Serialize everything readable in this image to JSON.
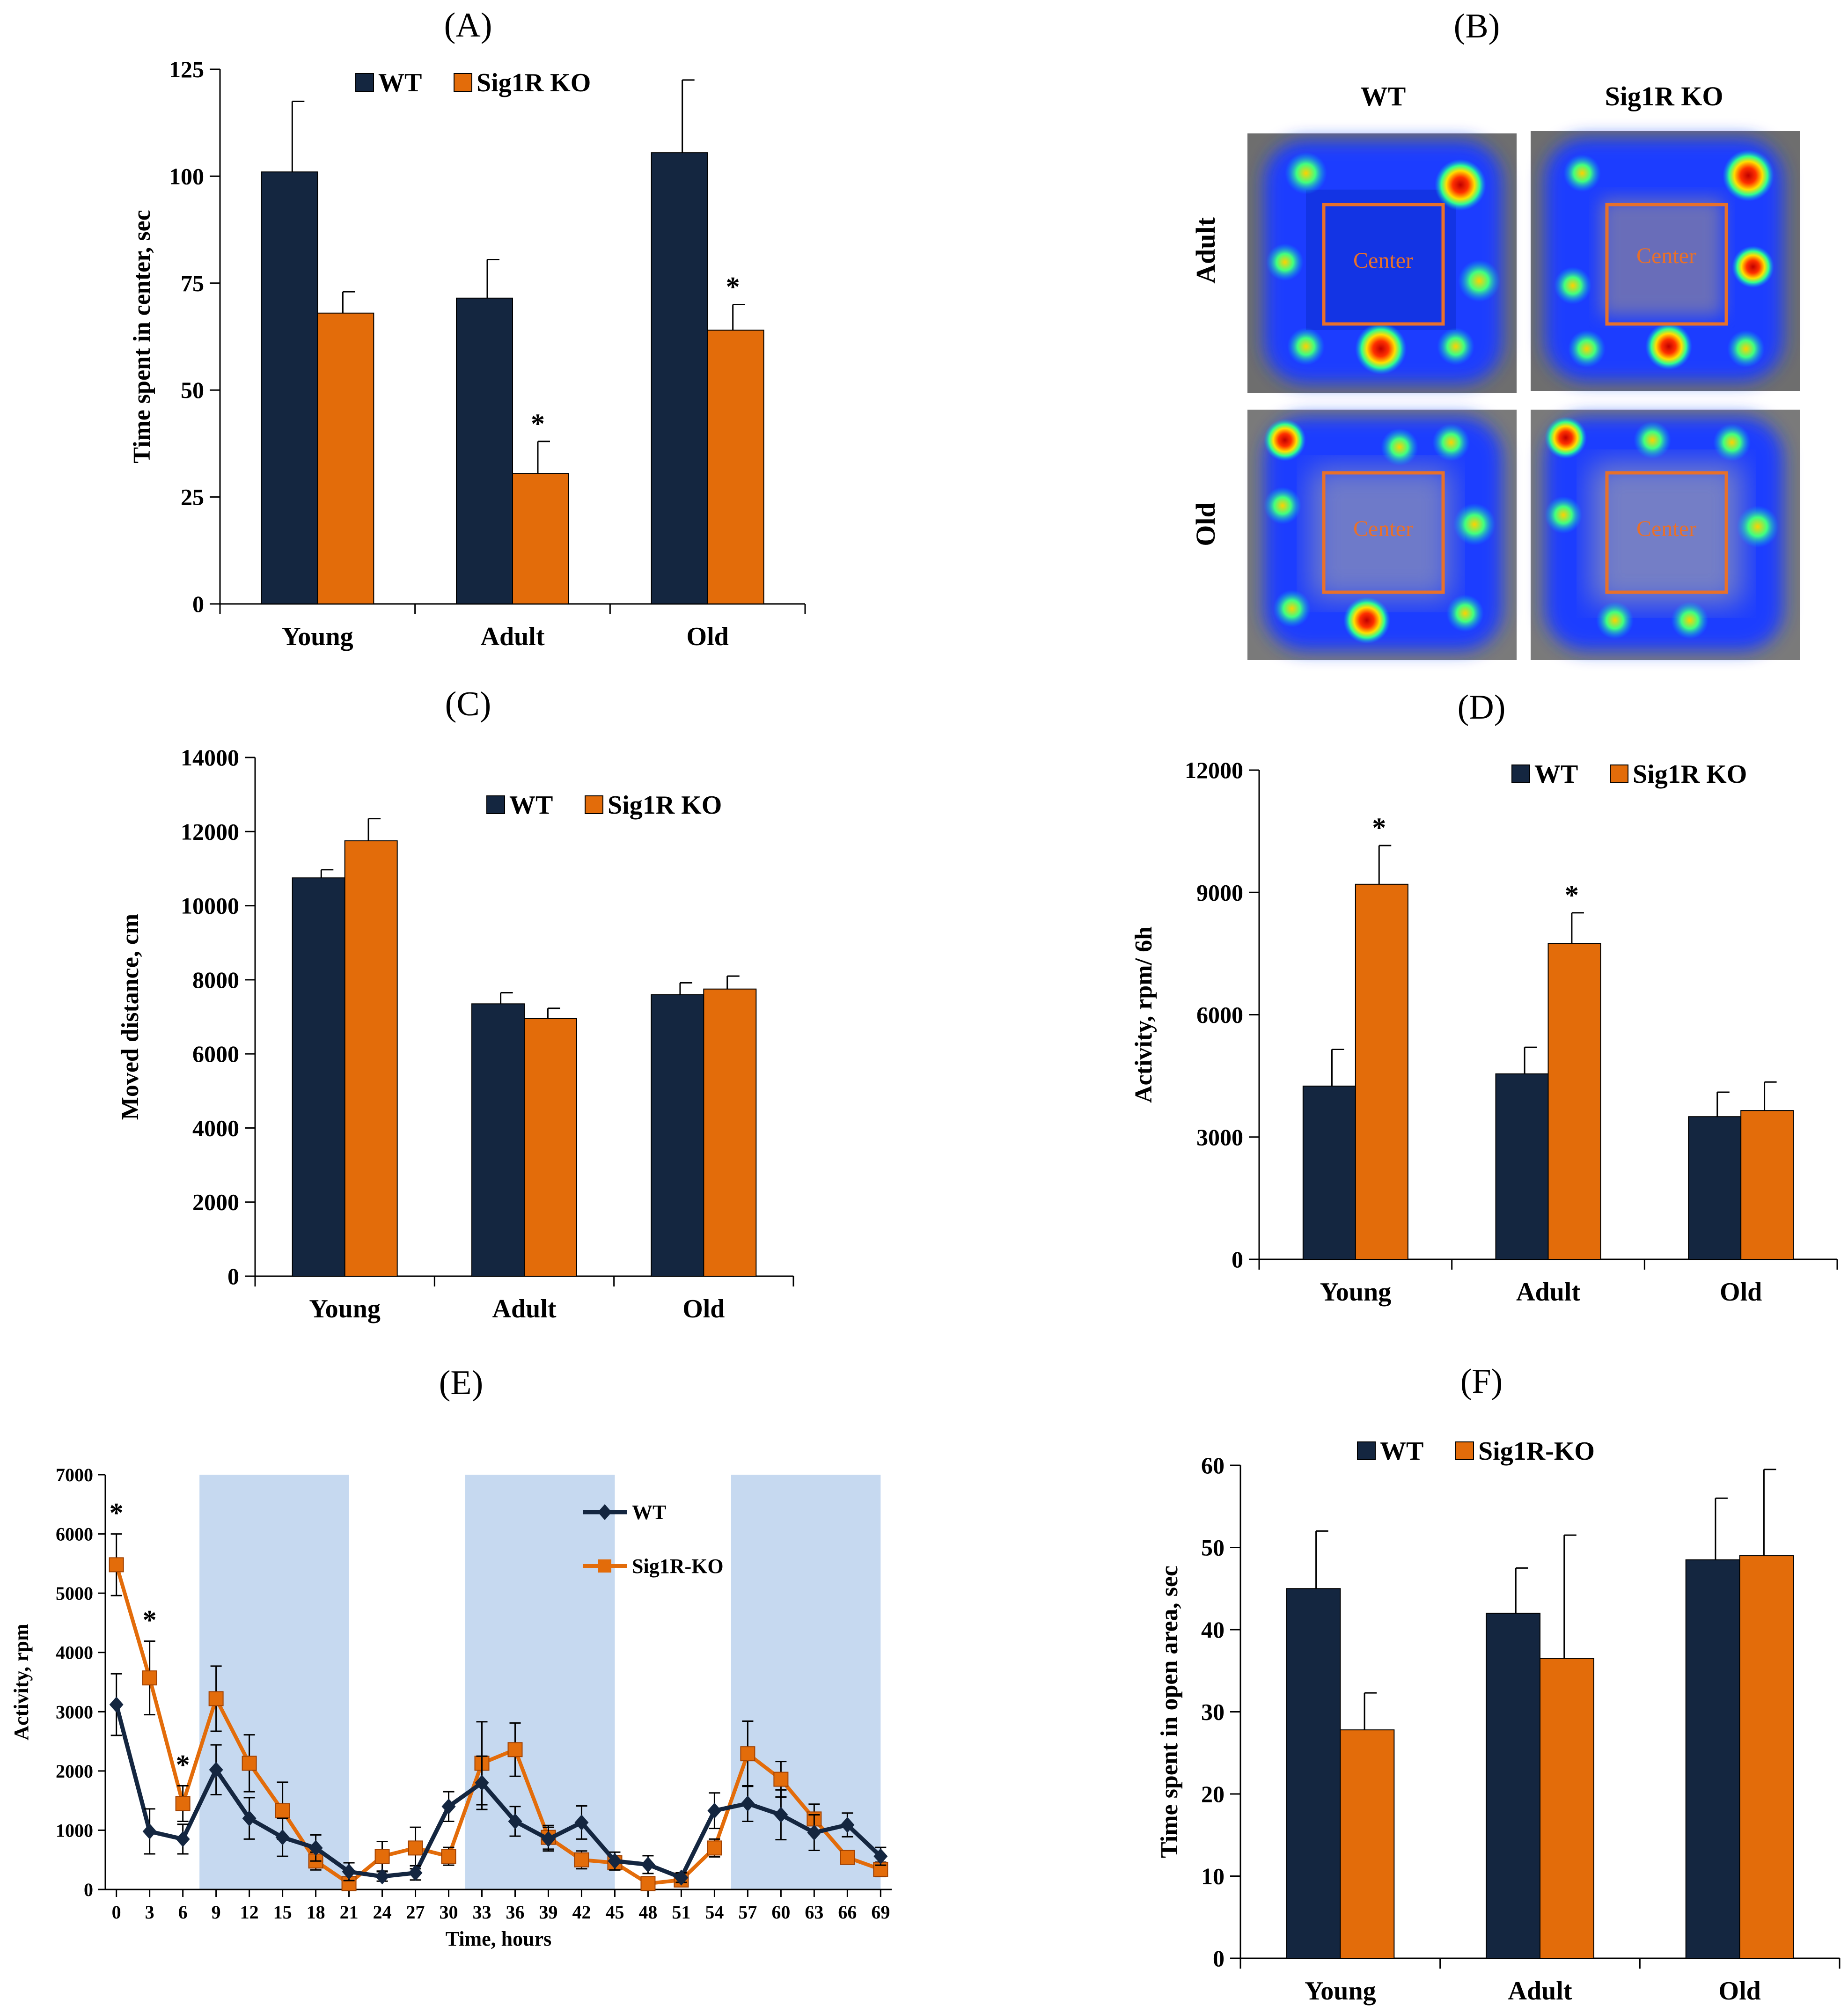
{
  "colors": {
    "wt": "#142640",
    "ko": "#e36c0a",
    "shade": "#c6d9f0",
    "heatBlue": "#1f3cff"
  },
  "chart_data": [
    {
      "id": "A",
      "type": "bar",
      "panel_label": "(A)",
      "categories": [
        "Young",
        "Adult",
        "Old"
      ],
      "series": [
        {
          "name": "WT",
          "values": [
            101,
            71.5,
            105.5
          ],
          "errors": [
            16.5,
            9,
            17
          ]
        },
        {
          "name": "Sig1R KO",
          "values": [
            68,
            30.5,
            64
          ],
          "errors": [
            5,
            7.5,
            6
          ]
        }
      ],
      "significance": [
        [
          "",
          ""
        ],
        [
          "",
          "*"
        ],
        [
          "",
          "*"
        ]
      ],
      "ylabel": "Time spent in center, sec",
      "ylim": [
        0,
        125
      ],
      "yticks": [
        0,
        25,
        50,
        75,
        100,
        125
      ],
      "legend_position": "top"
    },
    {
      "id": "C",
      "type": "bar",
      "panel_label": "(C)",
      "categories": [
        "Young",
        "Adult",
        "Old"
      ],
      "series": [
        {
          "name": "WT",
          "values": [
            10750,
            7350,
            7600
          ],
          "errors": [
            220,
            300,
            320
          ]
        },
        {
          "name": "Sig1R KO",
          "values": [
            11750,
            6950,
            7750
          ],
          "errors": [
            600,
            280,
            350
          ]
        }
      ],
      "significance": [
        [
          "",
          ""
        ],
        [
          "",
          ""
        ],
        [
          "",
          ""
        ]
      ],
      "ylabel": "Moved distance, cm",
      "ylim": [
        0,
        14000
      ],
      "yticks": [
        0,
        2000,
        4000,
        6000,
        8000,
        10000,
        12000,
        14000
      ],
      "legend_position": "top"
    },
    {
      "id": "D",
      "type": "bar",
      "panel_label": "(D)",
      "categories": [
        "Young",
        "Adult",
        "Old"
      ],
      "series": [
        {
          "name": "WT",
          "values": [
            4250,
            4550,
            3500
          ],
          "errors": [
            900,
            650,
            600
          ]
        },
        {
          "name": "Sig1R KO",
          "values": [
            9200,
            7750,
            3650
          ],
          "errors": [
            950,
            750,
            700
          ]
        }
      ],
      "significance": [
        [
          "",
          "*"
        ],
        [
          "",
          "*"
        ],
        [
          "",
          ""
        ]
      ],
      "ylabel": "Activity, rpm/ 6h",
      "ylim": [
        0,
        12000
      ],
      "yticks": [
        0,
        3000,
        6000,
        9000,
        12000
      ],
      "legend_position": "top"
    },
    {
      "id": "E",
      "type": "line",
      "panel_label": "(E)",
      "x": [
        0,
        3,
        6,
        9,
        12,
        15,
        18,
        21,
        24,
        27,
        30,
        33,
        36,
        39,
        42,
        45,
        48,
        51,
        54,
        57,
        60,
        63,
        66,
        69
      ],
      "series": [
        {
          "name": "WT",
          "values": [
            3120,
            980,
            850,
            2020,
            1200,
            880,
            700,
            300,
            220,
            280,
            1400,
            1800,
            1150,
            850,
            1130,
            480,
            420,
            200,
            1330,
            1450,
            1260,
            960,
            1090,
            560
          ],
          "errors": [
            520,
            380,
            250,
            420,
            350,
            320,
            220,
            150,
            80,
            120,
            250,
            450,
            250,
            200,
            280,
            150,
            150,
            80,
            300,
            300,
            420,
            300,
            200,
            150
          ]
        },
        {
          "name": "Sig1R-KO",
          "values": [
            5480,
            3570,
            1450,
            3220,
            2130,
            1330,
            480,
            100,
            560,
            700,
            560,
            2130,
            2360,
            880,
            500,
            450,
            100,
            160,
            700,
            2290,
            1860,
            1190,
            540,
            340
          ],
          "errors": [
            520,
            620,
            300,
            550,
            480,
            480,
            150,
            50,
            250,
            350,
            150,
            700,
            450,
            200,
            150,
            120,
            50,
            50,
            150,
            550,
            300,
            250,
            100,
            120
          ]
        }
      ],
      "significance_x": [
        0,
        3,
        6
      ],
      "shaded_x_ranges": [
        [
          7.5,
          21
        ],
        [
          31.5,
          45
        ],
        [
          55.5,
          69
        ]
      ],
      "xlabel": "Time, hours",
      "ylabel": "Activity, rpm",
      "xlim": [
        -1,
        70
      ],
      "ylim": [
        0,
        7000
      ],
      "yticks": [
        0,
        1000,
        2000,
        3000,
        4000,
        5000,
        6000,
        7000
      ],
      "legend_position": "top-right"
    },
    {
      "id": "F",
      "type": "bar",
      "panel_label": "(F)",
      "categories": [
        "Young",
        "Adult",
        "Old"
      ],
      "series": [
        {
          "name": "WT",
          "values": [
            45,
            42,
            48.5
          ],
          "errors": [
            7,
            5.5,
            7.5
          ]
        },
        {
          "name": "Sig1R-KO",
          "values": [
            27.8,
            36.5,
            49
          ],
          "errors": [
            4.5,
            15,
            10.5
          ]
        }
      ],
      "significance": [
        [
          "",
          ""
        ],
        [
          "",
          ""
        ],
        [
          "",
          ""
        ]
      ],
      "ylabel": "Time spent in open area, sec",
      "ylim": [
        0,
        60
      ],
      "yticks": [
        0,
        10,
        20,
        30,
        40,
        50,
        60
      ],
      "legend_position": "top"
    }
  ],
  "heatmaps": {
    "panel_label": "(B)",
    "columns": [
      "WT",
      "Sig1R KO"
    ],
    "rows": [
      "Adult",
      "Old"
    ],
    "center_label": "Center"
  }
}
